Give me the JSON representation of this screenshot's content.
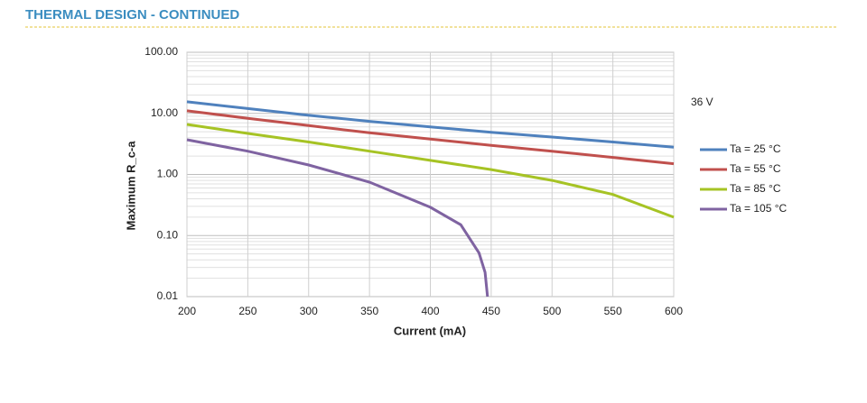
{
  "header": {
    "title": "THERMAL DESIGN - CONTINUED"
  },
  "chart_data": {
    "type": "line",
    "xlabel": "Current (mA)",
    "ylabel": "Maximum R_c-a",
    "annotation": "36 V",
    "log_y": true,
    "grid": true,
    "minor_grid": true,
    "xlim": [
      200,
      600
    ],
    "xticks": [
      200,
      250,
      300,
      350,
      400,
      450,
      500,
      550,
      600
    ],
    "ylim": [
      0.01,
      100
    ],
    "yticks": [
      {
        "value": 0.01,
        "label": "0.01"
      },
      {
        "value": 0.1,
        "label": "0.10"
      },
      {
        "value": 1,
        "label": "1.00"
      },
      {
        "value": 10,
        "label": "10.00"
      },
      {
        "value": 100,
        "label": "100.00"
      }
    ],
    "series": [
      {
        "name": "Ta = 25 °C",
        "color": "#4f81bd",
        "x": [
          200,
          250,
          300,
          350,
          400,
          450,
          500,
          550,
          600
        ],
        "values": [
          15.5,
          12,
          9.3,
          7.4,
          6.0,
          4.9,
          4.1,
          3.4,
          2.8
        ]
      },
      {
        "name": "Ta = 55 °C",
        "color": "#c0504d",
        "x": [
          200,
          250,
          300,
          350,
          400,
          450,
          500,
          550,
          600
        ],
        "values": [
          11,
          8.3,
          6.3,
          4.8,
          3.8,
          3.0,
          2.4,
          1.9,
          1.5
        ]
      },
      {
        "name": "Ta = 85 °C",
        "color": "#a6c324",
        "x": [
          200,
          250,
          300,
          350,
          400,
          450,
          500,
          550,
          600
        ],
        "values": [
          6.6,
          4.7,
          3.4,
          2.4,
          1.7,
          1.2,
          0.8,
          0.47,
          0.2
        ]
      },
      {
        "name": "Ta = 105 °C",
        "color": "#7f63a1",
        "x": [
          200,
          250,
          300,
          350,
          400,
          425,
          440,
          445,
          447
        ],
        "values": [
          3.7,
          2.4,
          1.43,
          0.75,
          0.29,
          0.15,
          0.052,
          0.025,
          0.01
        ]
      }
    ]
  }
}
